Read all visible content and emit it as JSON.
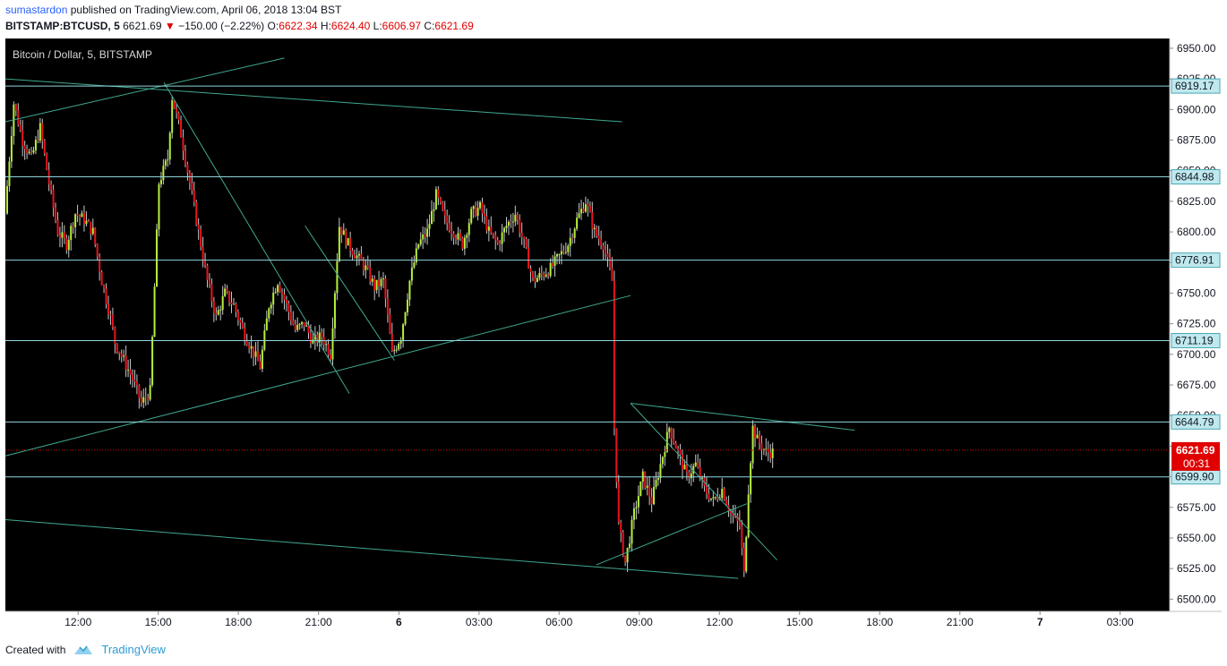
{
  "header": {
    "author": "sumastardon",
    "published": "published on TradingView.com, April 06, 2018 13:04 BST",
    "symbol": "BITSTAMP:BTCUSD, 5",
    "last": "6621.69",
    "change": "−150.00 (−2.22%)",
    "o_label": "O:",
    "o": "6622.34",
    "h_label": "H:",
    "h": "6624.40",
    "l_label": "L:",
    "l": "6606.97",
    "c_label": "C:",
    "c": "6621.69"
  },
  "footer": {
    "created": "Created with",
    "brand": "TradingView"
  },
  "colors": {
    "background": "#000000",
    "up": "#b5f03a",
    "down": "#e8141c",
    "wick": "#c8c8c8",
    "hline": "#8fd6dc",
    "trend": "#40a890",
    "lastprice": "#e00000"
  },
  "chart_data": {
    "type": "candlestick",
    "title": "Bitcoin / Dollar, 5, BITSTAMP",
    "ylim": [
      6490,
      6958
    ],
    "yticks": [
      "6500.00",
      "6525.00",
      "6550.00",
      "6575.00",
      "6600.00",
      "6625.00",
      "6650.00",
      "6675.00",
      "6700.00",
      "6725.00",
      "6750.00",
      "6775.00",
      "6800.00",
      "6825.00",
      "6850.00",
      "6875.00",
      "6900.00",
      "6925.00",
      "6950.00"
    ],
    "xticks": [
      {
        "label": "12:00",
        "pos": 0.0625
      },
      {
        "label": "15:00",
        "pos": 0.1313
      },
      {
        "label": "18:00",
        "pos": 0.2001
      },
      {
        "label": "21:00",
        "pos": 0.269
      },
      {
        "label": "6",
        "pos": 0.338
      },
      {
        "label": "03:00",
        "pos": 0.4068
      },
      {
        "label": "06:00",
        "pos": 0.4756
      },
      {
        "label": "09:00",
        "pos": 0.5445
      },
      {
        "label": "12:00",
        "pos": 0.6133
      },
      {
        "label": "15:00",
        "pos": 0.6821
      },
      {
        "label": "18:00",
        "pos": 0.7509
      },
      {
        "label": "21:00",
        "pos": 0.8198
      },
      {
        "label": "7",
        "pos": 0.8886
      },
      {
        "label": "03:00",
        "pos": 0.9574
      }
    ],
    "horizontal_levels": [
      "6919.17",
      "6844.98",
      "6776.91",
      "6711.19",
      "6644.79",
      "6599.90"
    ],
    "last_price": "6621.69",
    "countdown": "00:31",
    "trendlines": [
      {
        "x1": 0.0,
        "y1": 6925,
        "x2": 0.5296,
        "y2": 6890
      },
      {
        "x1": 0.0,
        "y1": 6890,
        "x2": 0.2396,
        "y2": 6942
      },
      {
        "x1": 0.1362,
        "y1": 6922,
        "x2": 0.2954,
        "y2": 6668
      },
      {
        "x1": 0.2574,
        "y1": 6805,
        "x2": 0.3342,
        "y2": 6695
      },
      {
        "x1": 0.0,
        "y1": 6617,
        "x2": 0.537,
        "y2": 6748
      },
      {
        "x1": 0.0,
        "y1": 6565,
        "x2": 0.6295,
        "y2": 6517
      },
      {
        "x1": 0.537,
        "y1": 6660,
        "x2": 0.7294,
        "y2": 6638
      },
      {
        "x1": 0.537,
        "y1": 6660,
        "x2": 0.6628,
        "y2": 6532
      },
      {
        "x1": 0.5075,
        "y1": 6528,
        "x2": 0.6368,
        "y2": 6578
      }
    ]
  }
}
